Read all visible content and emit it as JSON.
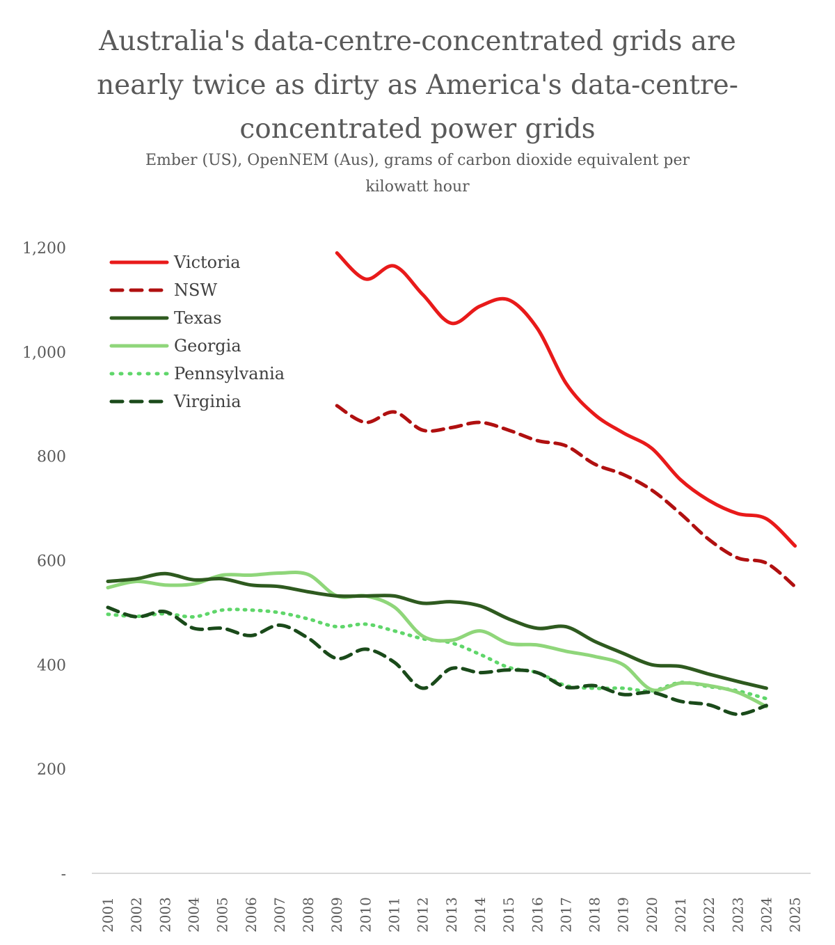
{
  "chart_data": {
    "type": "line",
    "title": "Australia's data-centre-concentrated grids are\nnearly twice as dirty as America's data-centre-\nconcentrated power grids",
    "subtitle": "Ember (US), OpenNEM (Aus), grams of carbon dioxide equivalent per\nkilowatt hour",
    "xlabel": "",
    "ylabel": "",
    "ylim": [
      0,
      1200
    ],
    "y_ticks": [
      {
        "value": 0,
        "label": "-"
      },
      {
        "value": 200,
        "label": "200"
      },
      {
        "value": 400,
        "label": "400"
      },
      {
        "value": 600,
        "label": "600"
      },
      {
        "value": 800,
        "label": "800"
      },
      {
        "value": 1000,
        "label": "1,000"
      },
      {
        "value": 1200,
        "label": "1,200"
      }
    ],
    "grid": false,
    "legend_position": "top-left",
    "categories": [
      "2001",
      "2002",
      "2003",
      "2004",
      "2005",
      "2006",
      "2007",
      "2008",
      "2009",
      "2010",
      "2011",
      "2012",
      "2013",
      "2014",
      "2015",
      "2016",
      "2017",
      "2018",
      "2019",
      "2020",
      "2021",
      "2022",
      "2023",
      "2024",
      "2025"
    ],
    "series": [
      {
        "name": "Victoria",
        "color": "#e81a1a",
        "style": "solid",
        "width": 5,
        "values": [
          null,
          null,
          null,
          null,
          null,
          null,
          null,
          null,
          1190,
          1140,
          1165,
          1110,
          1055,
          1088,
          1100,
          1045,
          940,
          880,
          845,
          815,
          755,
          715,
          690,
          680,
          628
        ]
      },
      {
        "name": "NSW",
        "color": "#b01010",
        "style": "dashed",
        "width": 5,
        "values": [
          null,
          null,
          null,
          null,
          null,
          null,
          null,
          null,
          897,
          865,
          885,
          850,
          855,
          865,
          850,
          830,
          820,
          785,
          765,
          735,
          690,
          640,
          605,
          595,
          550
        ]
      },
      {
        "name": "Texas",
        "color": "#2e5a1f",
        "style": "solid",
        "width": 5,
        "values": [
          560,
          565,
          575,
          563,
          565,
          553,
          550,
          540,
          532,
          532,
          532,
          518,
          521,
          513,
          488,
          470,
          473,
          445,
          422,
          400,
          397,
          382,
          368,
          355,
          null
        ]
      },
      {
        "name": "Georgia",
        "color": "#8fd67a",
        "style": "solid",
        "width": 5,
        "values": [
          548,
          560,
          553,
          555,
          572,
          572,
          576,
          573,
          532,
          532,
          511,
          455,
          447,
          465,
          441,
          438,
          426,
          416,
          400,
          352,
          365,
          360,
          347,
          320,
          null
        ]
      },
      {
        "name": "Pennsylvania",
        "color": "#5fd66a",
        "style": "dotted",
        "width": 5,
        "values": [
          497,
          493,
          498,
          492,
          505,
          505,
          500,
          488,
          473,
          478,
          465,
          450,
          442,
          420,
          395,
          385,
          360,
          355,
          355,
          350,
          366,
          358,
          350,
          335,
          null
        ]
      },
      {
        "name": "Virginia",
        "color": "#1a4a1a",
        "style": "dashed",
        "width": 5,
        "values": [
          510,
          492,
          502,
          470,
          470,
          456,
          476,
          451,
          412,
          430,
          405,
          355,
          393,
          385,
          390,
          385,
          357,
          360,
          343,
          347,
          330,
          323,
          305,
          322,
          null
        ]
      }
    ]
  }
}
